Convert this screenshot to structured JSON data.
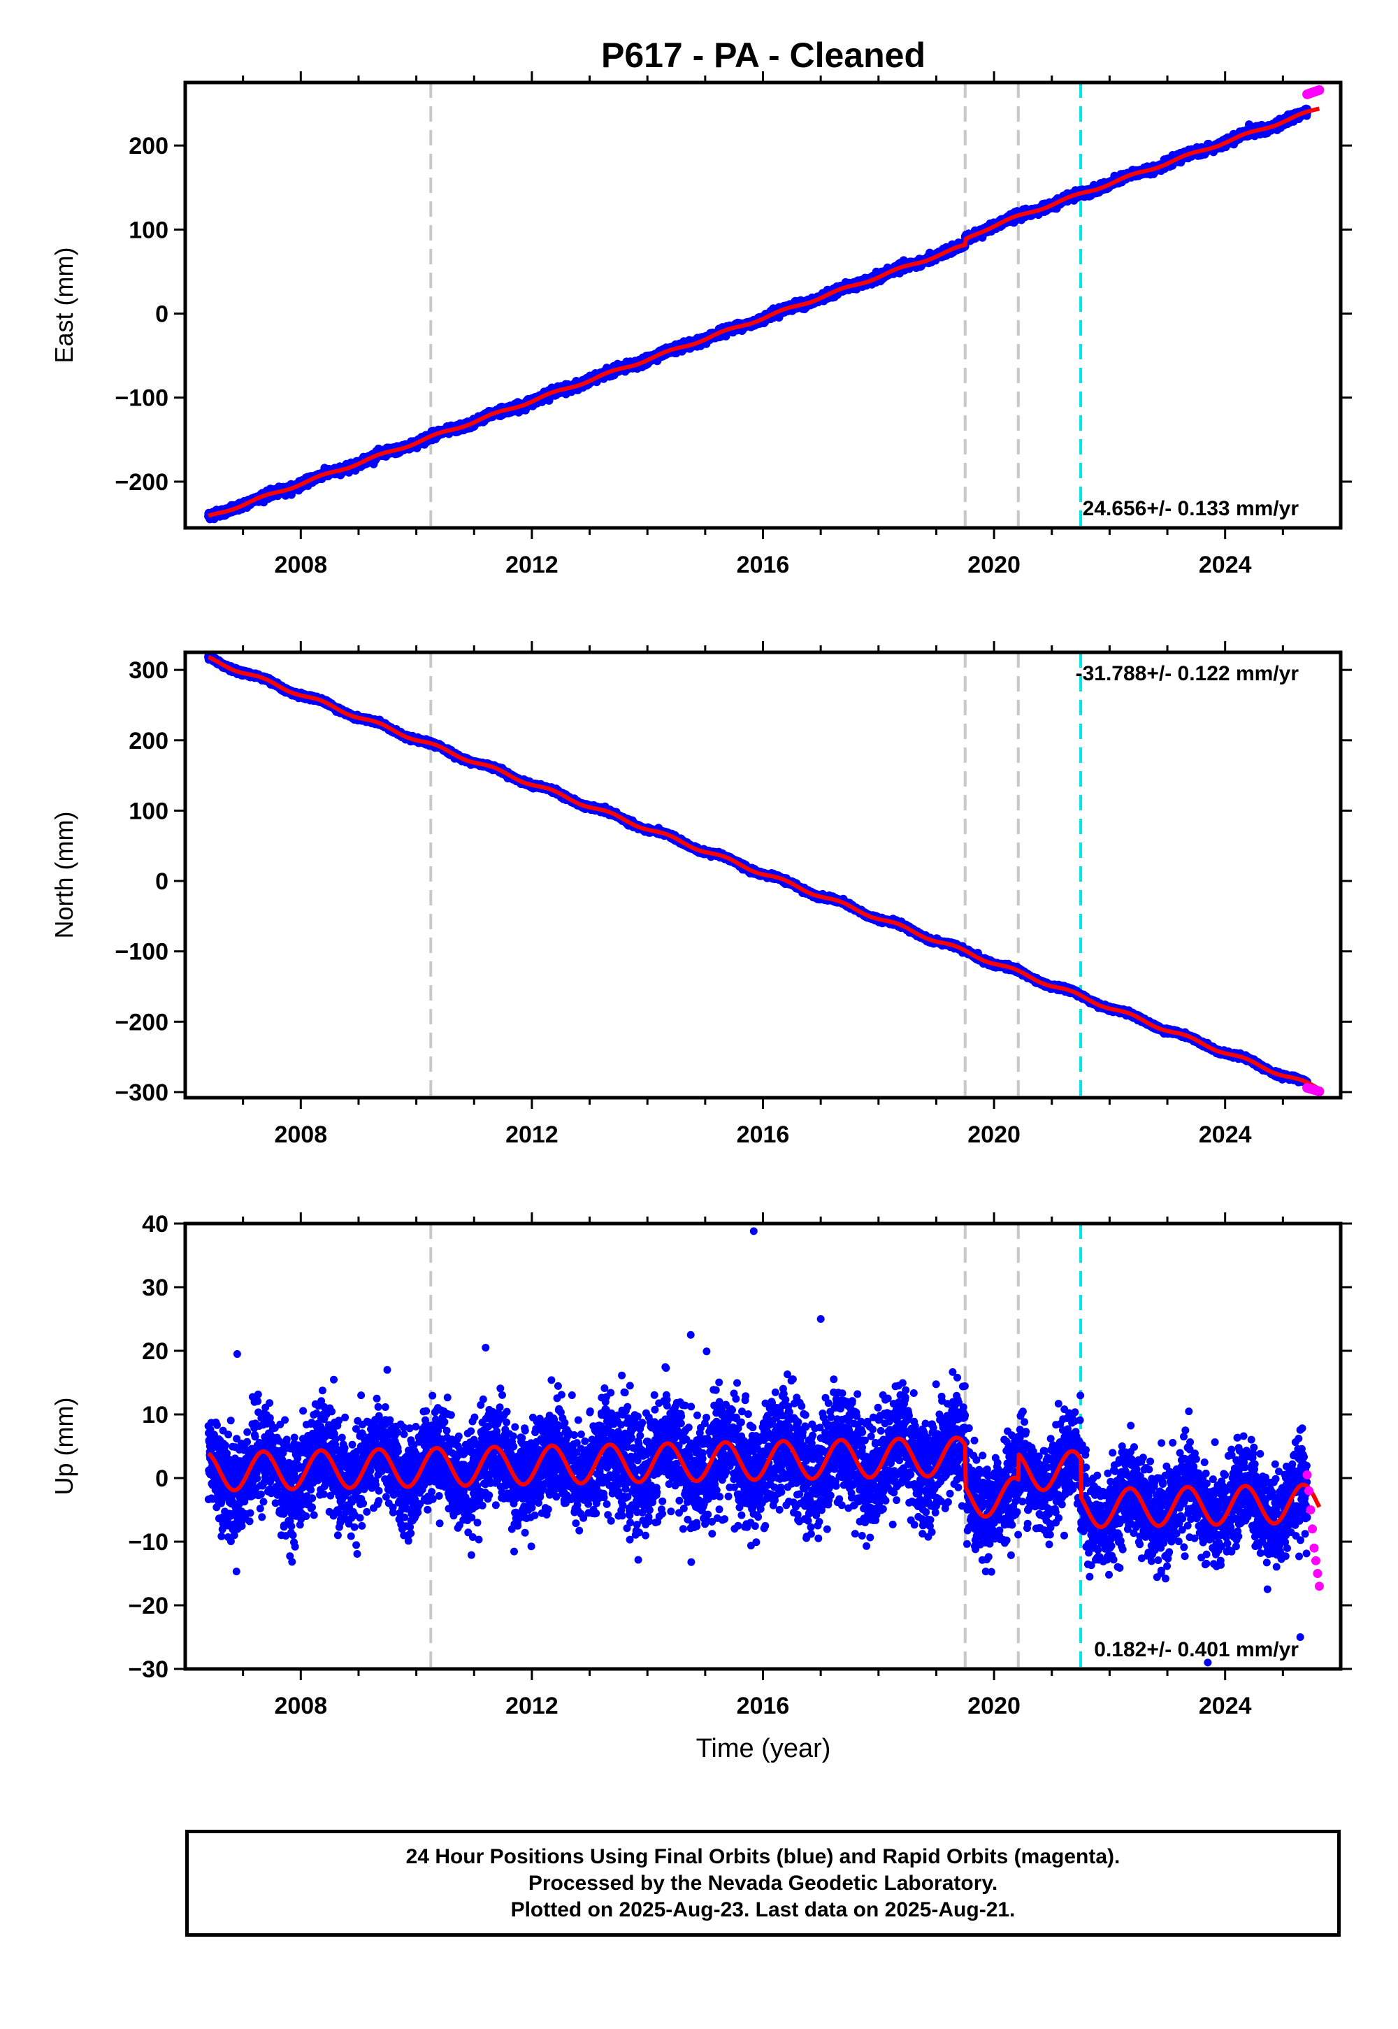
{
  "title": "P617  - PA - Cleaned",
  "x_tick_labels": [
    "2008",
    "2012",
    "2016",
    "2020",
    "2024"
  ],
  "x_label": "Time (year)",
  "colors": {
    "final_orbits": "#0000ff",
    "rapid_orbits": "#ff00ff",
    "model": "#ff0000",
    "event_gray": "#c8c8c8",
    "event_cyan": "#00e5e5"
  },
  "footer": {
    "line1": "24 Hour Positions Using Final Orbits (blue) and Rapid Orbits (magenta).",
    "line2": "Processed by the Nevada Geodetic Laboratory.",
    "line3": "Plotted on 2025-Aug-23. Last data on 2025-Aug-21."
  },
  "chart_data": [
    {
      "type": "scatter",
      "component": "east",
      "ylabel": "East (mm)",
      "xlim": [
        2006.0,
        2026.0
      ],
      "ylim": [
        -255,
        275
      ],
      "y_ticks": [
        -200,
        -100,
        0,
        100,
        200
      ],
      "y_tick_labels": [
        "−200",
        "−100",
        "0",
        "100",
        "200"
      ],
      "rate_label": "24.656+/- 0.133 mm/yr",
      "rate_position": "bottom-right",
      "data_start": 2006.4,
      "data_end": 2025.63,
      "rate_mm_yr": 24.656,
      "trend_anchor": {
        "x": 2006.4,
        "y": -242
      },
      "offsets": [
        {
          "x": 2019.5,
          "dy": 12
        }
      ],
      "postseismic": {
        "x": 2019.5,
        "amp": 12,
        "tau_yr": 0.25
      },
      "annual_amp": 1.5,
      "scatter_mm": 2.2,
      "rapid_points": {
        "start": 2025.42,
        "end": 2025.63,
        "y": [
          261,
          262,
          263,
          264,
          265,
          266
        ]
      }
    },
    {
      "type": "scatter",
      "component": "north",
      "ylabel": "North (mm)",
      "xlim": [
        2006.0,
        2026.0
      ],
      "ylim": [
        -308,
        325
      ],
      "y_ticks": [
        -300,
        -200,
        -100,
        0,
        100,
        200,
        300
      ],
      "y_tick_labels": [
        "−300",
        "−200",
        "−100",
        "0",
        "100",
        "200",
        "300"
      ],
      "rate_label": "-31.788+/- 0.122 mm/yr",
      "rate_position": "top-right",
      "data_start": 2006.4,
      "data_end": 2025.63,
      "rate_mm_yr": -31.788,
      "trend_anchor": {
        "x": 2006.4,
        "y": 316
      },
      "offsets": [],
      "annual_amp": 2.5,
      "scatter_mm": 1.6,
      "rapid_points": {
        "start": 2025.42,
        "end": 2025.63,
        "y": [
          -294,
          -295,
          -296,
          -297,
          -298,
          -299
        ]
      }
    },
    {
      "type": "scatter",
      "component": "up",
      "ylabel": "Up (mm)",
      "xlim": [
        2006.0,
        2026.0
      ],
      "ylim": [
        -30,
        40
      ],
      "y_ticks": [
        -30,
        -20,
        -10,
        0,
        10,
        20,
        30,
        40
      ],
      "y_tick_labels": [
        "−30",
        "−20",
        "−10",
        "0",
        "10",
        "20",
        "30",
        "40"
      ],
      "rate_label": "0.182+/- 0.401 mm/yr",
      "rate_position": "bottom-right",
      "data_start": 2006.4,
      "data_end": 2025.63,
      "rate_mm_yr": 0.182,
      "trend_anchor": {
        "x": 2006.4,
        "y": 1.0
      },
      "offsets": [
        {
          "x": 2019.5,
          "dy": -6.5
        },
        {
          "x": 2020.42,
          "dy": 4
        },
        {
          "x": 2021.5,
          "dy": -6
        }
      ],
      "annual_amp": 3.0,
      "scatter_mm": 3.8,
      "outliers": [
        {
          "x": 2015.84,
          "y": 38.8
        },
        {
          "x": 2017.0,
          "y": 25
        },
        {
          "x": 2014.75,
          "y": 22.5
        },
        {
          "x": 2006.9,
          "y": 19.5
        },
        {
          "x": 2011.2,
          "y": 20.5
        },
        {
          "x": 2023.7,
          "y": -29
        },
        {
          "x": 2025.3,
          "y": -25
        }
      ],
      "rapid_points": {
        "start": 2025.42,
        "end": 2025.63,
        "y": [
          0.5,
          -2,
          -5,
          -8,
          -11,
          -13,
          -15,
          -17
        ]
      }
    }
  ],
  "events": [
    {
      "x": 2010.25,
      "kind": "gray"
    },
    {
      "x": 2019.5,
      "kind": "gray"
    },
    {
      "x": 2020.42,
      "kind": "gray"
    },
    {
      "x": 2021.5,
      "kind": "cyan"
    }
  ]
}
